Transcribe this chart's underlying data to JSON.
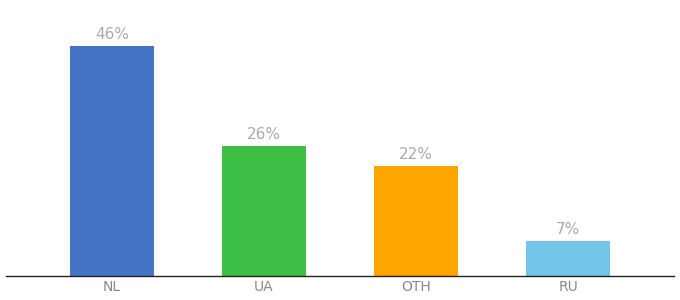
{
  "categories": [
    "NL",
    "UA",
    "OTH",
    "RU"
  ],
  "values": [
    46,
    26,
    22,
    7
  ],
  "bar_colors": [
    "#4472C4",
    "#3DBF45",
    "#FFA500",
    "#74C6E8"
  ],
  "value_label_color": "#aaaaaa",
  "tick_label_color": "#888888",
  "ylim": [
    0,
    54
  ],
  "background_color": "#ffffff",
  "tick_label_fontsize": 10,
  "value_label_fontsize": 11,
  "bar_width": 0.55,
  "figsize": [
    6.8,
    3.0
  ],
  "dpi": 100
}
